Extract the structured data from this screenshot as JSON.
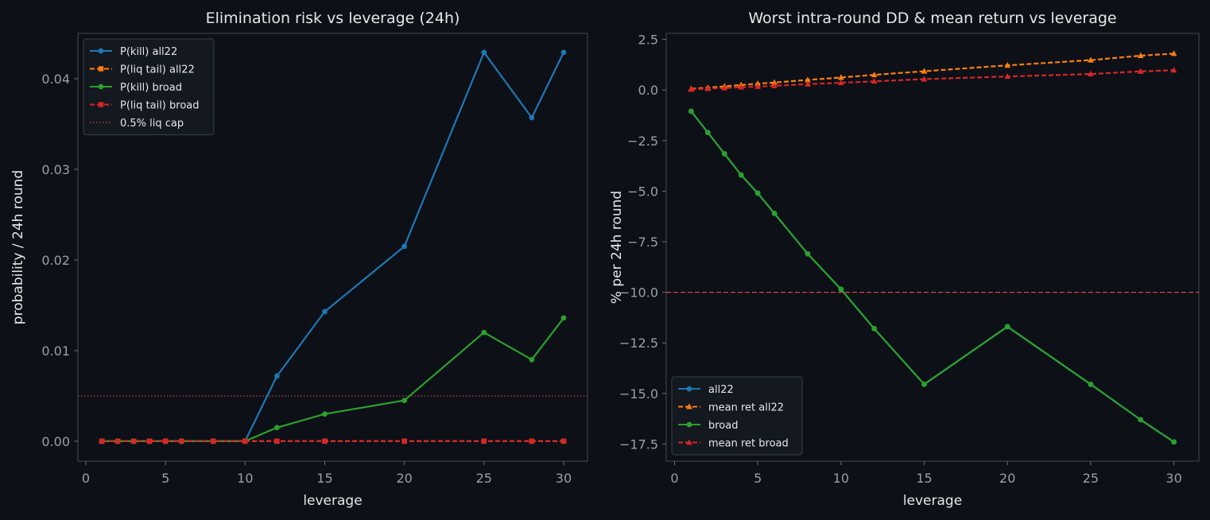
{
  "chart_data": [
    {
      "type": "line",
      "title": "Elimination risk vs leverage (24h)",
      "xlabel": "leverage",
      "ylabel": "probability / 24h round",
      "xlim": [
        -0.5,
        31.5
      ],
      "ylim": [
        -0.0022,
        0.045
      ],
      "xticks": [
        0,
        5,
        10,
        15,
        20,
        25,
        30
      ],
      "yticks": [
        0.0,
        0.01,
        0.02,
        0.03,
        0.04
      ],
      "ytick_labels": [
        "0.00",
        "0.01",
        "0.02",
        "0.03",
        "0.04"
      ],
      "legend_position": "top-left",
      "grid": false,
      "series": [
        {
          "name": "P(kill) all22",
          "color": "#1f77b4",
          "style": "solid",
          "marker": "circle",
          "x": [
            1,
            2,
            3,
            4,
            5,
            6,
            8,
            10,
            12,
            15,
            20,
            25,
            28,
            30
          ],
          "y": [
            0,
            0,
            0,
            0,
            0,
            0,
            0,
            0,
            0.0072,
            0.0143,
            0.0215,
            0.0429,
            0.0357,
            0.0429
          ]
        },
        {
          "name": "P(liq tail) all22",
          "color": "#ff7f0e",
          "style": "dashed",
          "marker": "square",
          "x": [
            1,
            2,
            3,
            4,
            5,
            6,
            8,
            10,
            12,
            15,
            20,
            25,
            28,
            30
          ],
          "y": [
            0,
            0,
            0,
            0,
            0,
            0,
            0,
            0,
            0,
            0,
            0,
            0,
            0,
            0
          ]
        },
        {
          "name": "P(kill) broad",
          "color": "#2ca02c",
          "style": "solid",
          "marker": "circle",
          "x": [
            1,
            2,
            3,
            4,
            5,
            6,
            8,
            10,
            12,
            15,
            20,
            25,
            28,
            30
          ],
          "y": [
            0,
            0,
            0,
            0,
            0,
            0,
            0,
            0,
            0.0015,
            0.003,
            0.0045,
            0.012,
            0.009,
            0.0136
          ]
        },
        {
          "name": "P(liq tail) broad",
          "color": "#d62728",
          "style": "dashed",
          "marker": "square",
          "x": [
            1,
            2,
            3,
            4,
            5,
            6,
            8,
            10,
            12,
            15,
            20,
            25,
            28,
            30
          ],
          "y": [
            0,
            0,
            0,
            0,
            0,
            0,
            0,
            0,
            0,
            0,
            0,
            0,
            0,
            0
          ]
        }
      ],
      "hlines": [
        {
          "name": "0.5% liq cap",
          "y": 0.005,
          "color": "#d64545",
          "style": "dotted",
          "in_legend": true
        }
      ]
    },
    {
      "type": "line",
      "title": "Worst intra-round DD & mean return vs leverage",
      "xlabel": "leverage",
      "ylabel": "% per 24h round",
      "xlim": [
        -0.5,
        31.5
      ],
      "ylim": [
        -18.35,
        2.8
      ],
      "xticks": [
        0,
        5,
        10,
        15,
        20,
        25,
        30
      ],
      "yticks": [
        2.5,
        0.0,
        -2.5,
        -5.0,
        -7.5,
        -10.0,
        -12.5,
        -15.0,
        -17.5
      ],
      "ytick_labels": [
        "2.5",
        "0.0",
        "−2.5",
        "−5.0",
        "−7.5",
        "−10.0",
        "−12.5",
        "−15.0",
        "−17.5"
      ],
      "legend_position": "bottom-left",
      "grid": false,
      "series": [
        {
          "name": "all22",
          "color": "#1f77b4",
          "style": "solid",
          "marker": "circle",
          "x": [
            1,
            2,
            3,
            4,
            5,
            6,
            8,
            10,
            12,
            15,
            20,
            25,
            28,
            30
          ],
          "y": [
            -1.05,
            -2.1,
            -3.15,
            -4.2,
            -5.1,
            -6.1,
            -8.1,
            -9.85,
            -11.8,
            -14.55,
            -11.7,
            -14.55,
            -16.3,
            -17.4
          ]
        },
        {
          "name": "mean ret all22",
          "color": "#ff7f0e",
          "style": "dashed",
          "marker": "triangle",
          "x": [
            1,
            2,
            3,
            4,
            5,
            6,
            8,
            10,
            12,
            15,
            20,
            25,
            28,
            30
          ],
          "y": [
            0.06,
            0.12,
            0.18,
            0.25,
            0.31,
            0.37,
            0.5,
            0.62,
            0.75,
            0.93,
            1.22,
            1.48,
            1.7,
            1.8
          ]
        },
        {
          "name": "broad",
          "color": "#2ca02c",
          "style": "solid",
          "marker": "circle",
          "x": [
            1,
            2,
            3,
            4,
            5,
            6,
            8,
            10,
            12,
            15,
            20,
            25,
            28,
            30
          ],
          "y": [
            -1.05,
            -2.1,
            -3.15,
            -4.2,
            -5.1,
            -6.1,
            -8.1,
            -9.85,
            -11.8,
            -14.55,
            -11.7,
            -14.55,
            -16.3,
            -17.4
          ]
        },
        {
          "name": "mean ret broad",
          "color": "#d62728",
          "style": "dashed",
          "marker": "triangle",
          "x": [
            1,
            2,
            3,
            4,
            5,
            6,
            8,
            10,
            12,
            15,
            20,
            25,
            28,
            30
          ],
          "y": [
            0.03,
            0.07,
            0.1,
            0.14,
            0.17,
            0.21,
            0.29,
            0.36,
            0.43,
            0.54,
            0.67,
            0.79,
            0.92,
            0.98
          ]
        }
      ],
      "hlines": [
        {
          "y": -10.0,
          "color": "#d64545",
          "style": "dashed",
          "in_legend": false
        }
      ]
    }
  ]
}
